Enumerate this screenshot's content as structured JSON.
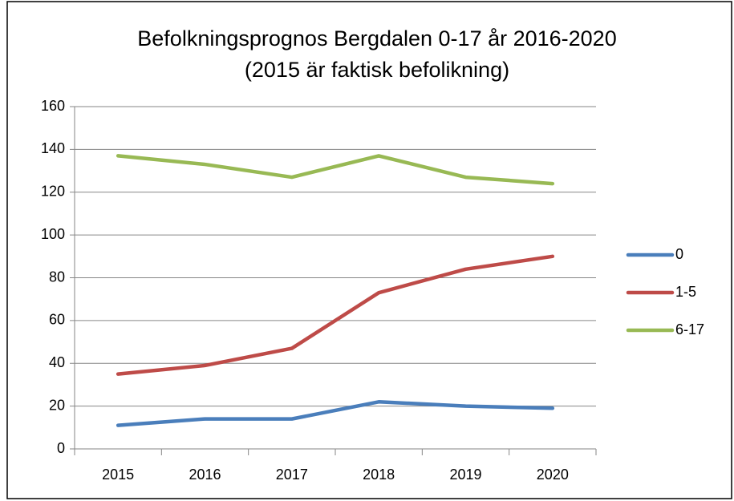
{
  "chart_data": {
    "type": "line",
    "title": "Befolkningsprognos Bergdalen 0-17 år 2016-2020",
    "subtitle": "(2015 är faktisk befolikning)",
    "categories": [
      "2015",
      "2016",
      "2017",
      "2018",
      "2019",
      "2020"
    ],
    "series": [
      {
        "name": "0",
        "color": "#4a7ebb",
        "values": [
          11,
          14,
          14,
          22,
          20,
          19
        ]
      },
      {
        "name": "1-5",
        "color": "#be4b48",
        "values": [
          35,
          39,
          47,
          73,
          84,
          90
        ]
      },
      {
        "name": "6-17",
        "color": "#98b954",
        "values": [
          137,
          133,
          127,
          137,
          127,
          124
        ]
      }
    ],
    "ylim": [
      0,
      160
    ],
    "yticks": [
      0,
      20,
      40,
      60,
      80,
      100,
      120,
      140,
      160
    ],
    "grid": true,
    "legend": "right"
  }
}
